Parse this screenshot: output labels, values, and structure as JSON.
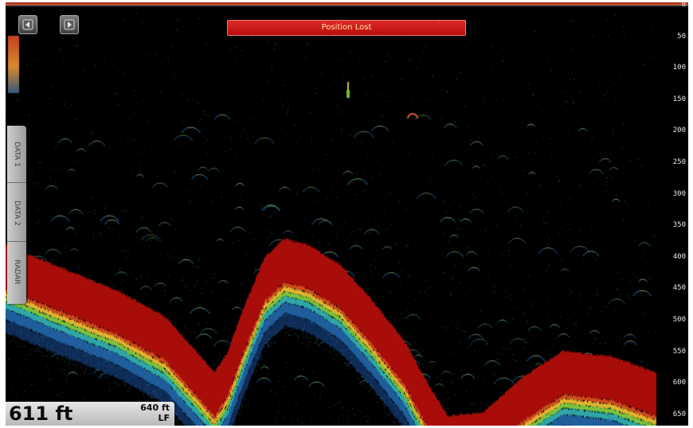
{
  "alert": {
    "message": "Position Lost"
  },
  "side_tabs": [
    {
      "label": "DATA 1"
    },
    {
      "label": "DATA 2"
    },
    {
      "label": "RADAR"
    }
  ],
  "depth_scale": {
    "unit": "ft",
    "ticks": [
      "0",
      "50",
      "100",
      "150",
      "200",
      "250",
      "300",
      "350",
      "400",
      "450",
      "500",
      "550",
      "600",
      "650"
    ]
  },
  "readout": {
    "depth": "611 ft",
    "range": "640 ft",
    "frequency": "LF"
  },
  "icons": {
    "top_left": "back-arrow-icon",
    "top_right": "forward-arrow-icon"
  },
  "colors": {
    "bottom_return": "#a80d0a",
    "alert": "#d01a1a",
    "background": "#000000"
  }
}
